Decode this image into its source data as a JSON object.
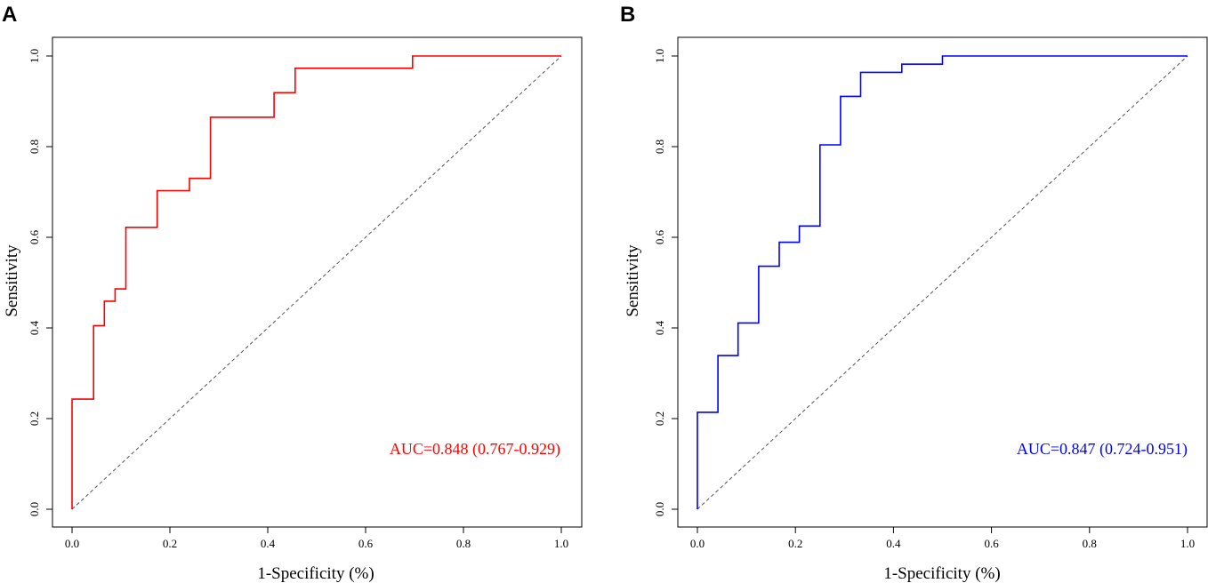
{
  "chart_data": [
    {
      "type": "line",
      "panel": "A",
      "title": "",
      "xlabel": "1-Specificity (%)",
      "ylabel": "Sensitivity",
      "xlim": [
        0,
        1
      ],
      "ylim": [
        0,
        1
      ],
      "xticks": [
        "0.0",
        "0.2",
        "0.4",
        "0.6",
        "0.8",
        "1.0"
      ],
      "yticks": [
        "0.0",
        "0.2",
        "0.4",
        "0.6",
        "0.8",
        "1.0"
      ],
      "grid": false,
      "series": [
        {
          "name": "ROC",
          "color": "#ff0000",
          "x": [
            0,
            0,
            0.044,
            0.044,
            0.066,
            0.066,
            0.088,
            0.088,
            0.11,
            0.11,
            0.174,
            0.174,
            0.24,
            0.24,
            0.283,
            0.283,
            0.413,
            0.413,
            0.456,
            0.456,
            0.696,
            0.696,
            1.0
          ],
          "y": [
            0,
            0.243,
            0.243,
            0.405,
            0.405,
            0.459,
            0.459,
            0.486,
            0.486,
            0.622,
            0.622,
            0.703,
            0.703,
            0.73,
            0.73,
            0.865,
            0.865,
            0.919,
            0.919,
            0.973,
            0.973,
            1.0,
            1.0
          ]
        },
        {
          "name": "Reference",
          "color": "#555555",
          "x": [
            0,
            1
          ],
          "y": [
            0,
            1
          ]
        }
      ],
      "annotation": "AUC=0.848 (0.767-0.929)",
      "annotation_color": "#ff0000"
    },
    {
      "type": "line",
      "panel": "B",
      "title": "",
      "xlabel": "1-Specificity (%)",
      "ylabel": "Sensitivity",
      "xlim": [
        0,
        1
      ],
      "ylim": [
        0,
        1
      ],
      "xticks": [
        "0.0",
        "0.2",
        "0.4",
        "0.6",
        "0.8",
        "1.0"
      ],
      "yticks": [
        "0.0",
        "0.2",
        "0.4",
        "0.6",
        "0.8",
        "1.0"
      ],
      "grid": false,
      "series": [
        {
          "name": "ROC",
          "color": "#0000ff",
          "x": [
            0,
            0,
            0.042,
            0.042,
            0.083,
            0.083,
            0.125,
            0.125,
            0.167,
            0.167,
            0.208,
            0.208,
            0.25,
            0.25,
            0.292,
            0.292,
            0.333,
            0.333,
            0.417,
            0.417,
            0.5,
            0.5,
            1.0
          ],
          "y": [
            0,
            0.214,
            0.214,
            0.339,
            0.339,
            0.411,
            0.411,
            0.536,
            0.536,
            0.589,
            0.589,
            0.625,
            0.625,
            0.804,
            0.804,
            0.911,
            0.911,
            0.964,
            0.964,
            0.982,
            0.982,
            1.0,
            1.0
          ]
        },
        {
          "name": "Reference",
          "color": "#555555",
          "x": [
            0,
            1
          ],
          "y": [
            0,
            1
          ]
        }
      ],
      "annotation": "AUC=0.847 (0.724-0.951)",
      "annotation_color": "#0000ff"
    }
  ]
}
